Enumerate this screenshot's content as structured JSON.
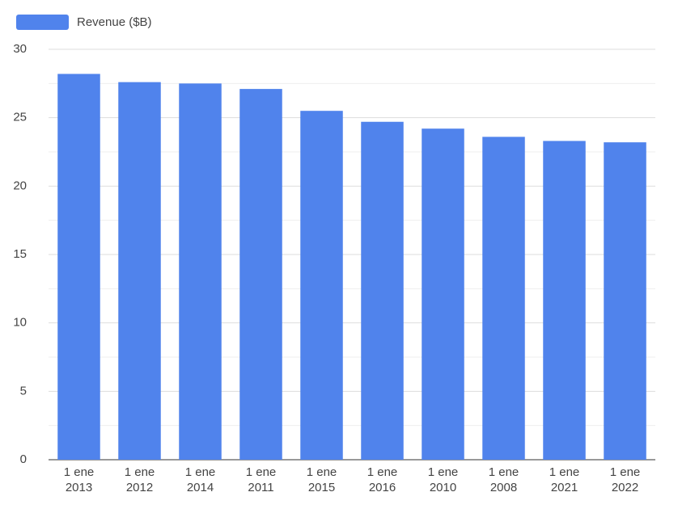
{
  "chart_data": {
    "type": "bar",
    "categories": [
      "1 ene 2013",
      "1 ene 2012",
      "1 ene 2014",
      "1 ene 2011",
      "1 ene 2015",
      "1 ene 2016",
      "1 ene 2010",
      "1 ene 2008",
      "1 ene 2021",
      "1 ene 2022"
    ],
    "series": [
      {
        "name": "Revenue ($B)",
        "color": "#5083ec",
        "values": [
          28.2,
          27.6,
          27.5,
          27.1,
          25.5,
          24.7,
          24.2,
          23.6,
          23.3,
          23.2
        ]
      }
    ],
    "ylim": [
      0,
      30
    ],
    "yticks": [
      0,
      5,
      10,
      15,
      20,
      25,
      30
    ],
    "minor_yticks": [
      2.5,
      7.5,
      12.5,
      17.5,
      22.5,
      27.5
    ],
    "grid": true,
    "legend": "top-left"
  }
}
